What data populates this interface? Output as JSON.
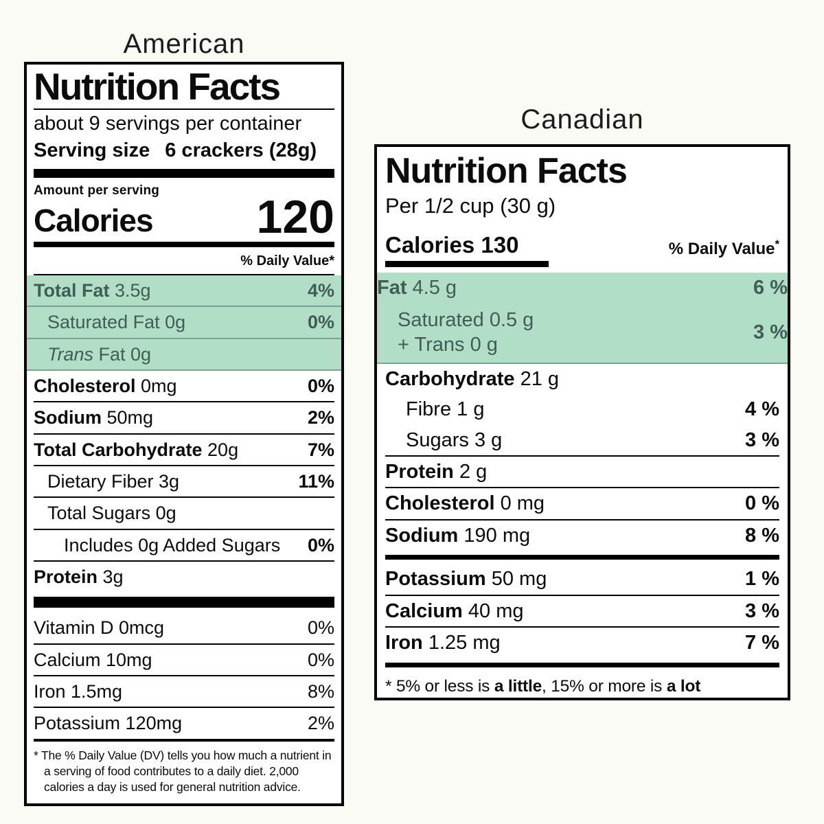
{
  "colors": {
    "background": "#fcfcf7",
    "highlight": "#b2ddc7",
    "highlight_text": "#3f5e55"
  },
  "american": {
    "title": "American",
    "header": "Nutrition Facts",
    "servings_per_container": "about 9 servings per container",
    "serving_size_label": "Serving size",
    "serving_size_value": "6 crackers (28g)",
    "amount_per_serving": "Amount per serving",
    "calories_label": "Calories",
    "calories_value": "120",
    "daily_value_header": "% Daily Value*",
    "rows": [
      {
        "bold": "Total Fat",
        "rest": " 3.5g",
        "value": "4%",
        "value_bold": true,
        "highlight": true,
        "border": true
      },
      {
        "rest": "Saturated Fat 0g",
        "value": "0%",
        "value_bold": true,
        "indent": 1,
        "highlight": true,
        "border": true
      },
      {
        "italic": "Trans",
        "rest": " Fat 0g",
        "value": "",
        "indent": 1,
        "highlight": true,
        "border": true
      },
      {
        "bold": "Cholesterol",
        "rest": " 0mg",
        "value": "0%",
        "value_bold": true,
        "border": true
      },
      {
        "bold": "Sodium",
        "rest": " 50mg",
        "value": "2%",
        "value_bold": true,
        "border": true
      },
      {
        "bold": "Total Carbohydrate",
        "rest": " 20g",
        "value": "7%",
        "value_bold": true,
        "border": true
      },
      {
        "rest": "Dietary Fiber 3g",
        "value": "11%",
        "value_bold": true,
        "indent": 1,
        "border": true
      },
      {
        "rest": "Total Sugars 0g",
        "indent": 1,
        "border": true
      },
      {
        "rest": "Includes 0g Added Sugars",
        "value": "0%",
        "value_bold": true,
        "indent": 2,
        "border": true
      },
      {
        "bold": "Protein",
        "rest": " 3g"
      },
      {
        "type": "bar"
      },
      {
        "rest": "Vitamin D 0mcg",
        "value": "0%",
        "border": true
      },
      {
        "rest": "Calcium 10mg",
        "value": "0%",
        "border": true
      },
      {
        "rest": "Iron 1.5mg",
        "value": "8%",
        "border": true
      },
      {
        "rest": "Potassium 120mg",
        "value": "2%"
      }
    ],
    "footnote": "* The % Daily Value (DV) tells you how much a nutrient in a serving of food contributes to a daily diet. 2,000 calories a day is used for general nutrition advice."
  },
  "canadian": {
    "title": "Canadian",
    "header": "Nutrition Facts",
    "serving": "Per 1/2 cup (30 g)",
    "calories": "Calories 130",
    "daily_value_header": "% Daily Value",
    "daily_value_sup": "*",
    "rows": [
      {
        "bold": "Fat",
        "rest": " 4.5 g",
        "value": "6 %",
        "value_bold": true,
        "highlight": true
      },
      {
        "lines": [
          "Saturated 0.5 g",
          "+ Trans 0 g"
        ],
        "value": "3 %",
        "value_bold": true,
        "indent": 1,
        "highlight": true,
        "border": true
      },
      {
        "bold": "Carbohydrate",
        "rest": " 21 g"
      },
      {
        "rest": "Fibre 1 g",
        "value": "4 %",
        "value_bold": true,
        "indent": 1
      },
      {
        "rest": "Sugars 3 g",
        "value": "3 %",
        "value_bold": true,
        "indent": 1,
        "border": true
      },
      {
        "bold": "Protein",
        "rest": " 2 g",
        "border": true
      },
      {
        "bold": "Cholesterol",
        "rest": " 0 mg",
        "value": "0 %",
        "value_bold": true,
        "border": true
      },
      {
        "bold": "Sodium",
        "rest": " 190 mg",
        "value": "8 %",
        "value_bold": true
      },
      {
        "type": "bar"
      },
      {
        "bold": "Potassium",
        "rest": " 50 mg",
        "value": "1 %",
        "value_bold": true,
        "border": true
      },
      {
        "bold": "Calcium",
        "rest": " 40 mg",
        "value": "3 %",
        "value_bold": true,
        "border": true
      },
      {
        "bold": "Iron",
        "rest": " 1.25 mg",
        "value": "7 %",
        "value_bold": true
      },
      {
        "type": "bar"
      }
    ],
    "footnote_parts": [
      {
        "t": "* 5% or less is "
      },
      {
        "t": "a little",
        "b": true
      },
      {
        "t": ", 15% or more is "
      },
      {
        "t": "a lot",
        "b": true
      }
    ]
  }
}
